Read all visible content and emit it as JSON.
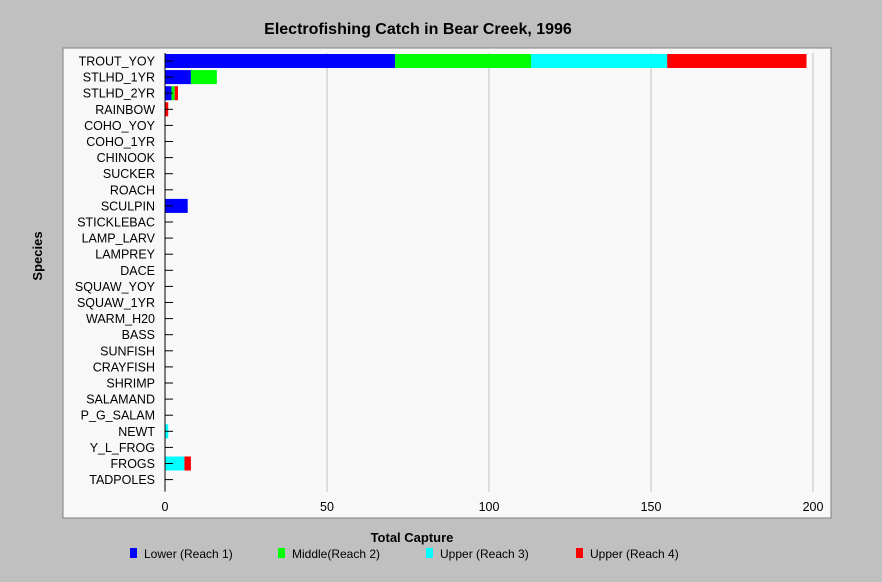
{
  "chart_data": {
    "type": "bar",
    "orientation": "horizontal",
    "stacked": true,
    "title": "Electrofishing Catch in Bear Creek, 1996",
    "xlabel": "Total Capture",
    "ylabel": "Species",
    "xlim": [
      0,
      200
    ],
    "xticks": [
      0,
      50,
      100,
      150,
      200
    ],
    "grid": "vertical",
    "legend_position": "bottom",
    "categories": [
      "TROUT_YOY",
      "STLHD_1YR",
      "STLHD_2YR",
      "RAINBOW",
      "COHO_YOY",
      "COHO_1YR",
      "CHINOOK",
      "SUCKER",
      "ROACH",
      "SCULPIN",
      "STICKLEBAC",
      "LAMP_LARV",
      "LAMPREY",
      "DACE",
      "SQUAW_YOY",
      "SQUAW_1YR",
      "WARM_H20",
      "BASS",
      "SUNFISH",
      "CRAYFISH",
      "SHRIMP",
      "SALAMAND",
      "P_G_SALAM",
      "NEWT",
      "Y_L_FROG",
      "FROGS",
      "TADPOLES"
    ],
    "series": [
      {
        "name": "Lower (Reach 1)",
        "color": "#0000ff",
        "values": [
          71,
          8,
          2,
          0,
          0,
          0,
          0,
          0,
          0,
          7,
          0,
          0,
          0,
          0,
          0,
          0,
          0,
          0,
          0,
          0,
          0,
          0,
          0,
          0,
          0,
          0,
          0
        ]
      },
      {
        "name": "Middle(Reach 2)",
        "color": "#00ff00",
        "values": [
          42,
          8,
          1,
          0,
          0,
          0,
          0,
          0,
          0,
          0,
          0,
          0,
          0,
          0,
          0,
          0,
          0,
          0,
          0,
          0,
          0,
          0,
          0,
          0,
          0,
          0,
          0
        ]
      },
      {
        "name": "Upper (Reach 3)",
        "color": "#00ffff",
        "values": [
          42,
          0,
          0,
          0,
          0,
          0,
          0,
          0,
          0,
          0,
          0,
          0,
          0,
          0,
          0,
          0,
          0,
          0,
          0,
          0,
          0,
          0,
          0,
          1,
          0,
          6,
          0
        ]
      },
      {
        "name": "Upper (Reach 4)",
        "color": "#ff0000",
        "values": [
          43,
          0,
          1,
          1,
          0,
          0,
          0,
          0,
          0,
          0,
          0,
          0,
          0,
          0,
          0,
          0,
          0,
          0,
          0,
          0,
          0,
          0,
          0,
          0,
          0,
          2,
          0
        ]
      }
    ]
  }
}
